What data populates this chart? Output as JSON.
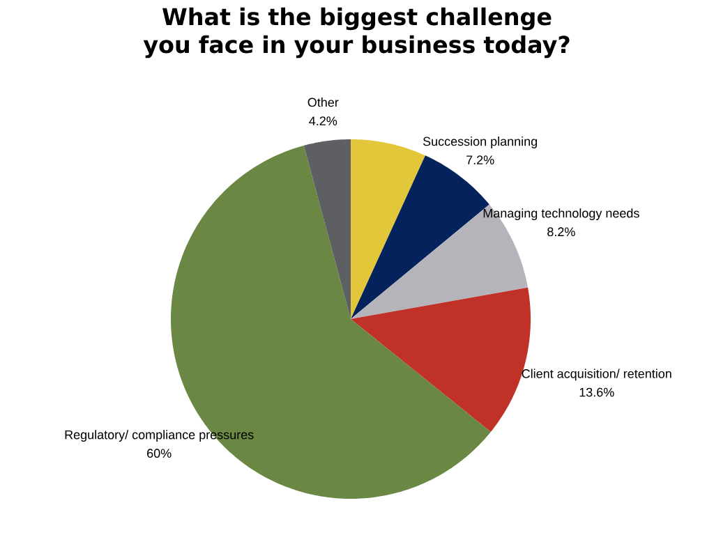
{
  "chart_data": {
    "type": "pie",
    "title": "What is the biggest challenge you face in your business today?",
    "categories": [
      null,
      "Succession planning",
      "Managing technology needs",
      "Client acquisition/ retention",
      "Regulatory/ compliance pressures",
      "Other"
    ],
    "values": [
      6.8,
      7.2,
      8.2,
      13.6,
      60,
      4.2
    ],
    "value_labels": [
      null,
      "7.2%",
      "8.2%",
      "13.6%",
      "60%",
      "4.2%"
    ],
    "colors": [
      "#e3c73b",
      "#04235c",
      "#b5b4bb",
      "#c03127",
      "#6a8843",
      "#5e5f63"
    ]
  }
}
